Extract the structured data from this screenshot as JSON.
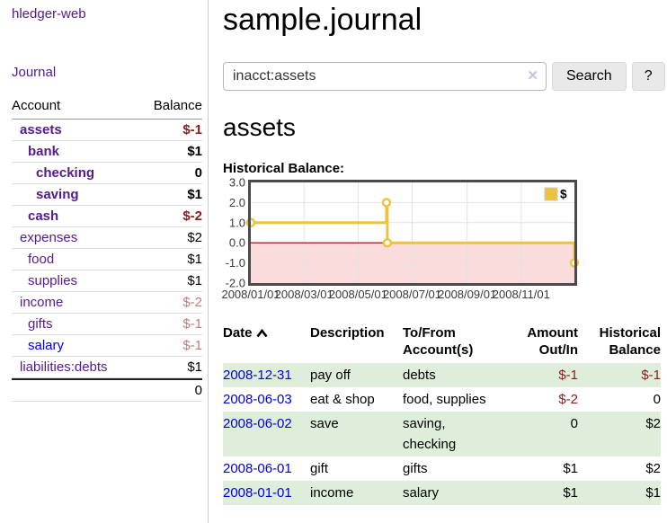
{
  "colors": {
    "accent_purple": "#551a8b",
    "link_blue": "#0000dd",
    "negative_strong": "#8b1a1a",
    "negative_soft": "#c17d7d",
    "row_stripe_green": "#dfeeda",
    "chart_line_gold": "#edc240",
    "chart_negative_fill": "#fbdcdc",
    "chart_zero_line": "#8b0000",
    "chart_grid": "#e2e2e2",
    "chart_border": "#4a4a4a"
  },
  "sidebar": {
    "app_title": "hledger-web",
    "journal_label": "Journal",
    "account_header": "Account",
    "balance_header": "Balance",
    "accounts": [
      {
        "name": "assets",
        "level": 1,
        "bold": true,
        "balance": "$-1",
        "tone": "neg-strong"
      },
      {
        "name": "bank",
        "level": 2,
        "bold": true,
        "balance": "$1"
      },
      {
        "name": "checking",
        "level": 3,
        "bold": true,
        "balance": "0"
      },
      {
        "name": "saving",
        "level": 3,
        "bold": true,
        "balance": "$1"
      },
      {
        "name": "cash",
        "level": 2,
        "bold": true,
        "balance": "$-2",
        "tone": "neg-strong"
      },
      {
        "name": "expenses",
        "level": 1,
        "bold": false,
        "balance": "$2"
      },
      {
        "name": "food",
        "level": 2,
        "bold": false,
        "balance": "$1"
      },
      {
        "name": "supplies",
        "level": 2,
        "bold": false,
        "balance": "$1"
      },
      {
        "name": "income",
        "level": 1,
        "bold": false,
        "balance": "$-2",
        "tone": "neg-soft"
      },
      {
        "name": "gifts",
        "level": 2,
        "bold": false,
        "balance": "$-1",
        "tone": "neg-soft"
      },
      {
        "name": "salary",
        "level": 2,
        "bold": false,
        "balance": "$-1",
        "tone": "neg-soft",
        "link_color": "blue"
      },
      {
        "name": "liabilities:debts",
        "level": 1,
        "bold": false,
        "balance": "$1"
      }
    ],
    "total": "0"
  },
  "header": {
    "title": "sample.journal"
  },
  "search": {
    "value": "inacct:assets",
    "clear_icon": "✕",
    "button_label": "Search",
    "help_label": "?"
  },
  "main": {
    "account_heading": "assets",
    "chart_title": "Historical Balance:"
  },
  "chart_data": {
    "type": "line",
    "step": true,
    "title": "Historical Balance:",
    "legend": [
      {
        "label": "$",
        "color": "#edc240"
      }
    ],
    "legend_position": "top-right",
    "grid": true,
    "x_domain_days": [
      0,
      365
    ],
    "y_domain": [
      -2,
      3
    ],
    "x_ticks": [
      {
        "label": "2008/01/01",
        "day": 0
      },
      {
        "label": "2008/03/01",
        "day": 60
      },
      {
        "label": "2008/05/01",
        "day": 121
      },
      {
        "label": "2008/07/01",
        "day": 182
      },
      {
        "label": "2008/09/01",
        "day": 244
      },
      {
        "label": "2008/11/01",
        "day": 305
      }
    ],
    "y_ticks": [
      {
        "label": "3.0",
        "value": 3
      },
      {
        "label": "2.0",
        "value": 2
      },
      {
        "label": "1.0",
        "value": 1
      },
      {
        "label": "0.0",
        "value": 0
      },
      {
        "label": "-1.0",
        "value": -1
      },
      {
        "label": "-2.0",
        "value": -2
      }
    ],
    "points": [
      {
        "date": "2008-01-01",
        "day": 0,
        "value": 1
      },
      {
        "date": "2008-06-02",
        "day": 153,
        "value": 2
      },
      {
        "date": "2008-06-03",
        "day": 154,
        "value": 0
      },
      {
        "date": "2008-12-31",
        "day": 365,
        "value": -1
      }
    ],
    "negative_region_below": 0
  },
  "register": {
    "headers": [
      {
        "label": "Date",
        "align": "left",
        "sorted_asc": true
      },
      {
        "label": "Description",
        "align": "left"
      },
      {
        "label": "To/From Account(s)",
        "align": "left"
      },
      {
        "label": "Amount Out/In",
        "align": "right"
      },
      {
        "label": "Historical Balance",
        "align": "right"
      }
    ],
    "rows": [
      {
        "date": "2008-12-31",
        "description": "pay off",
        "accounts": "debts",
        "amount": "$-1",
        "amount_negative": true,
        "balance": "$-1",
        "balance_negative": true
      },
      {
        "date": "2008-06-03",
        "description": "eat & shop",
        "accounts": "food, supplies",
        "amount": "$-2",
        "amount_negative": true,
        "balance": "0",
        "balance_negative": false
      },
      {
        "date": "2008-06-02",
        "description": "save",
        "accounts": "saving, checking",
        "amount": "0",
        "amount_negative": false,
        "balance": "$2",
        "balance_negative": false
      },
      {
        "date": "2008-06-01",
        "description": "gift",
        "accounts": "gifts",
        "amount": "$1",
        "amount_negative": false,
        "balance": "$2",
        "balance_negative": false
      },
      {
        "date": "2008-01-01",
        "description": "income",
        "accounts": "salary",
        "amount": "$1",
        "amount_negative": false,
        "balance": "$1",
        "balance_negative": false
      }
    ]
  }
}
